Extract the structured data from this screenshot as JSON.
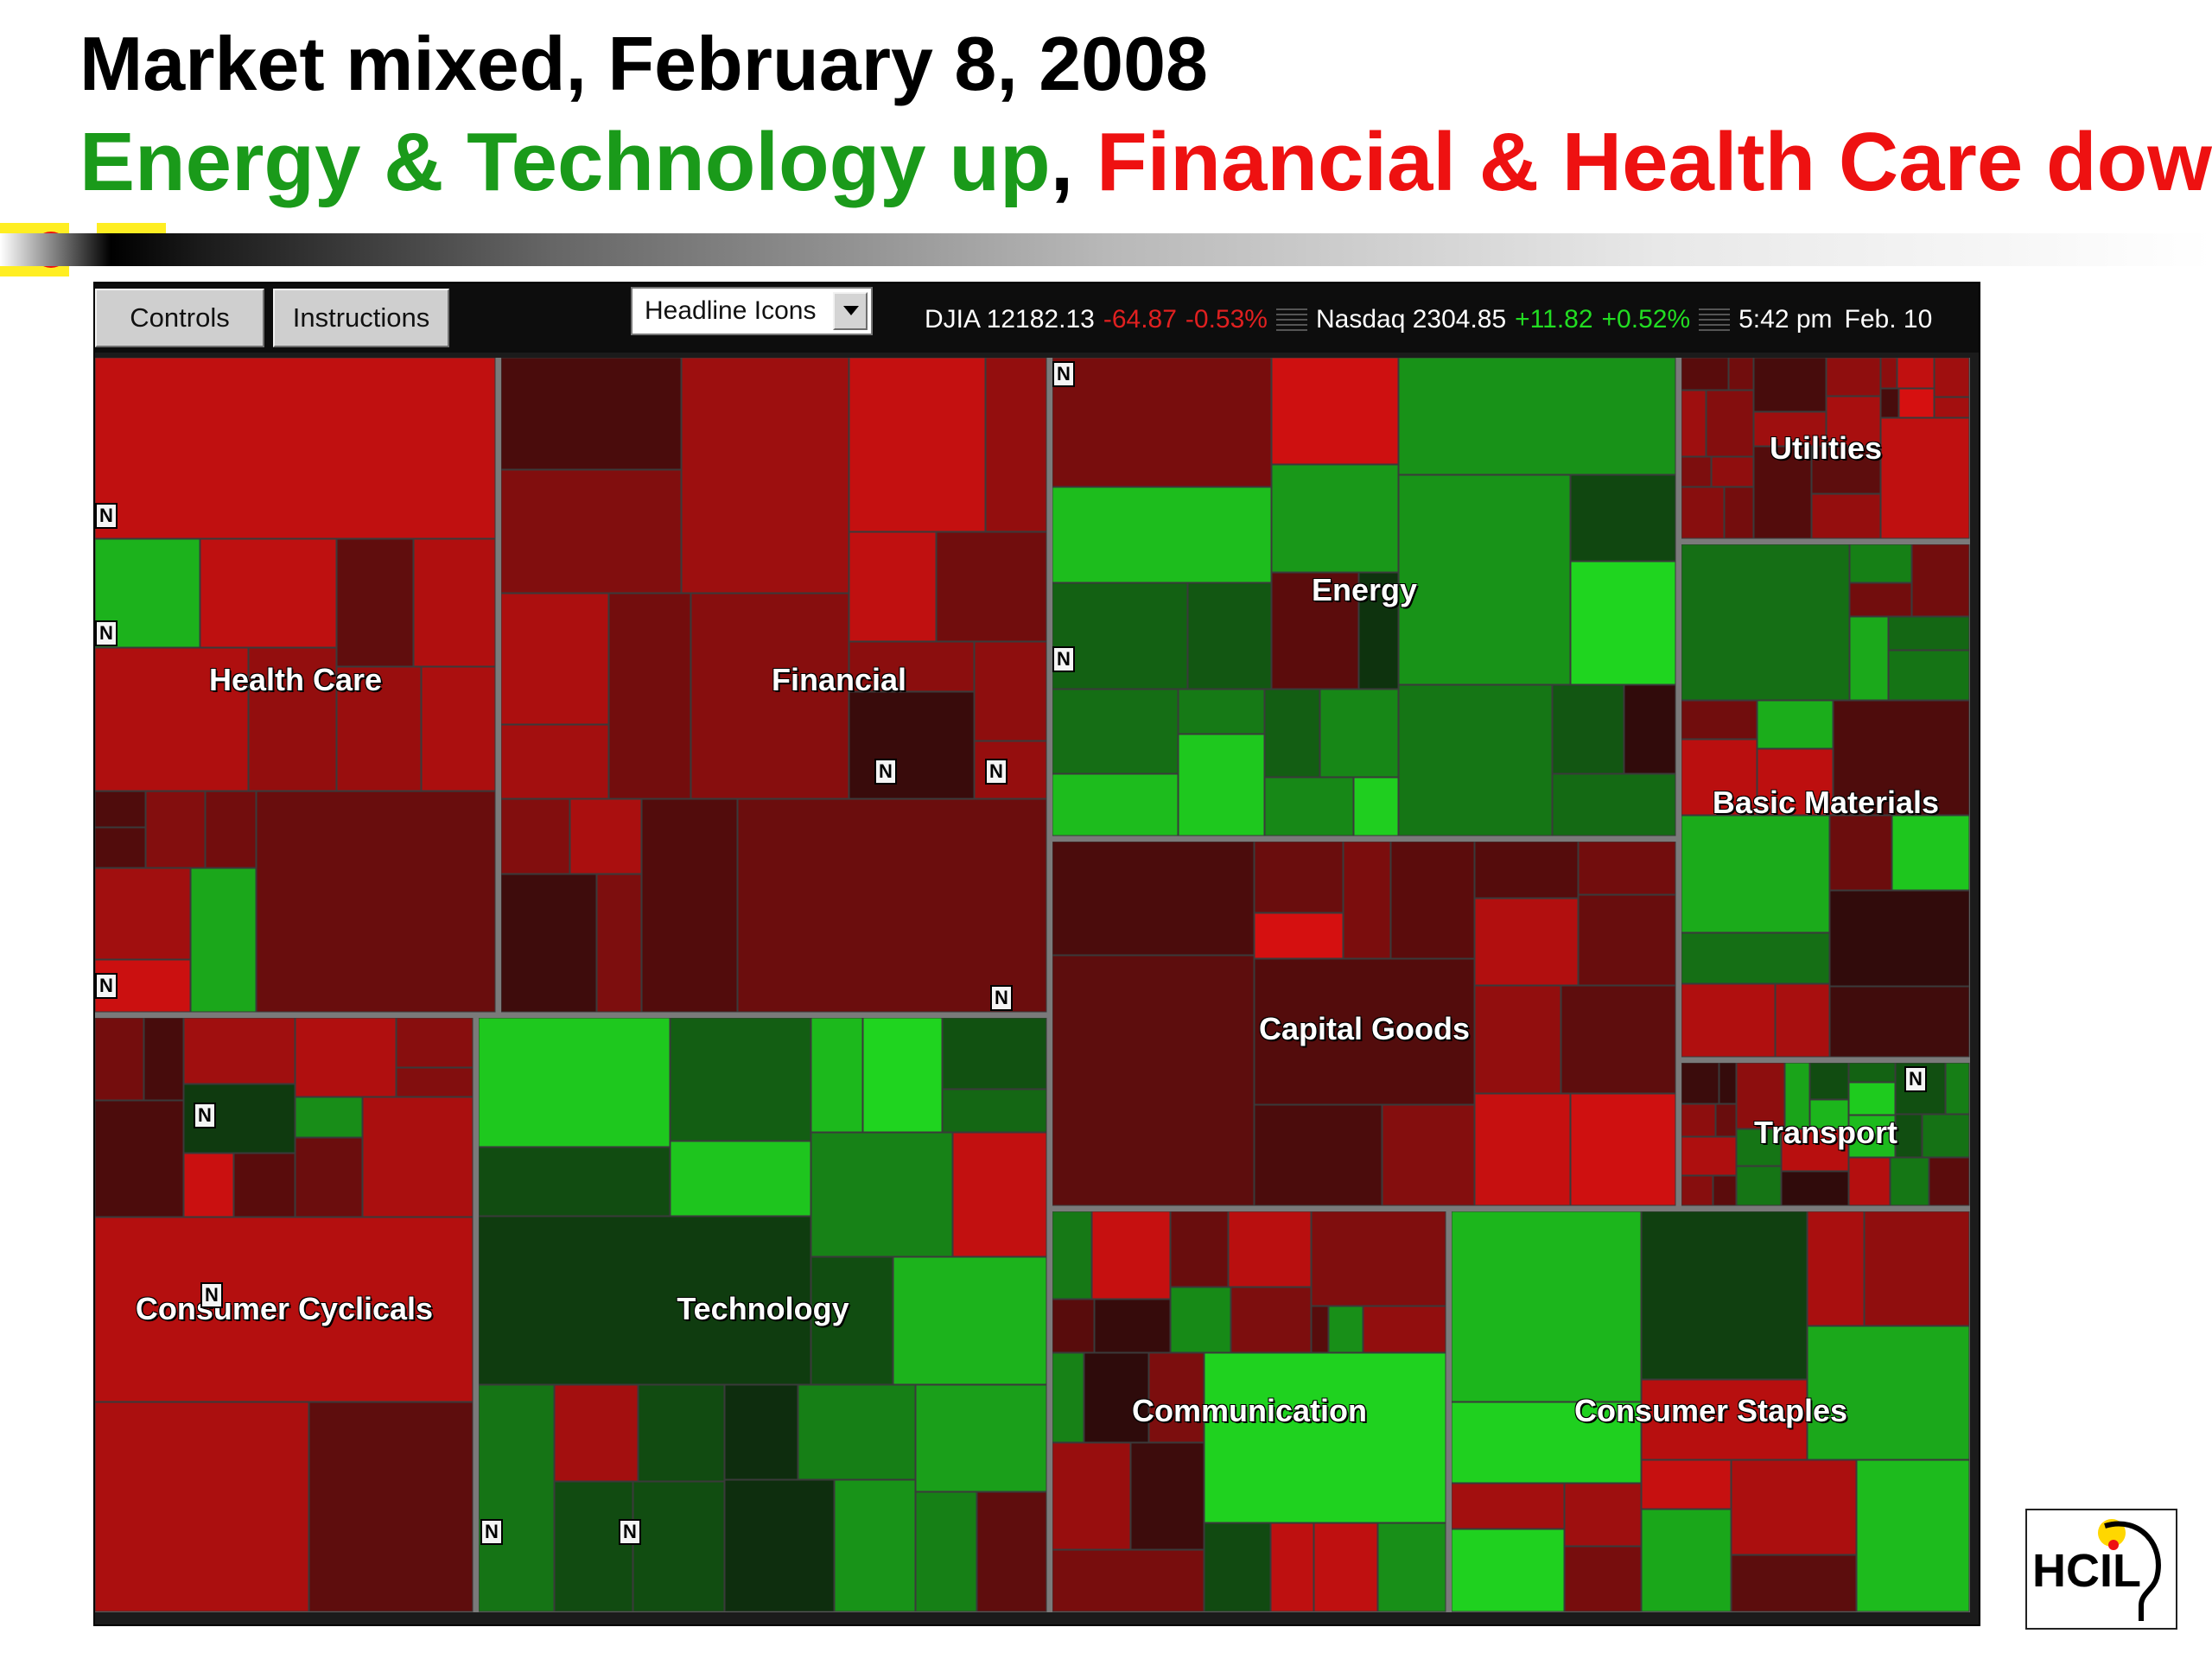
{
  "slide": {
    "title": "Market mixed, February 8, 2008",
    "subtitle_up": "Energy & Technology up",
    "subtitle_comma": ", ",
    "subtitle_down": "Financial & Health Care down",
    "colors": {
      "up": "#1a9a1a",
      "down": "#ee1111"
    }
  },
  "toolbar": {
    "controls_label": "Controls",
    "instructions_label": "Instructions",
    "view_select_value": "Headline Icons",
    "djia_label": "DJIA 12182.13",
    "djia_change": "-64.87",
    "djia_pct": "-0.53%",
    "nasdaq_label": "Nasdaq 2304.85",
    "nasdaq_change": "+11.82",
    "nasdaq_pct": "+0.52%",
    "time_label": "5:42 pm",
    "date_label": "Feb. 10"
  },
  "treemap": {
    "sectors": [
      {
        "key": "health_care",
        "label": "Health Care",
        "trend": "down"
      },
      {
        "key": "financial",
        "label": "Financial",
        "trend": "down"
      },
      {
        "key": "energy",
        "label": "Energy",
        "trend": "up"
      },
      {
        "key": "utilities",
        "label": "Utilities",
        "trend": "down"
      },
      {
        "key": "basic_materials",
        "label": "Basic Materials",
        "trend": "mixed"
      },
      {
        "key": "transport",
        "label": "Transport",
        "trend": "mixed"
      },
      {
        "key": "capital_goods",
        "label": "Capital Goods",
        "trend": "down"
      },
      {
        "key": "consumer_cyclicals",
        "label": "Consumer Cyclicals",
        "trend": "down"
      },
      {
        "key": "technology",
        "label": "Technology",
        "trend": "up"
      },
      {
        "key": "communication",
        "label": "Communication",
        "trend": "mixed"
      },
      {
        "key": "consumer_staples",
        "label": "Consumer Staples",
        "trend": "mixed"
      }
    ],
    "headline_icon_text": "N",
    "color_scale": {
      "up": "#22ee22",
      "neutral": "#0a0a0a",
      "down": "#ee1111"
    }
  },
  "logo": {
    "text": "HCIL"
  }
}
